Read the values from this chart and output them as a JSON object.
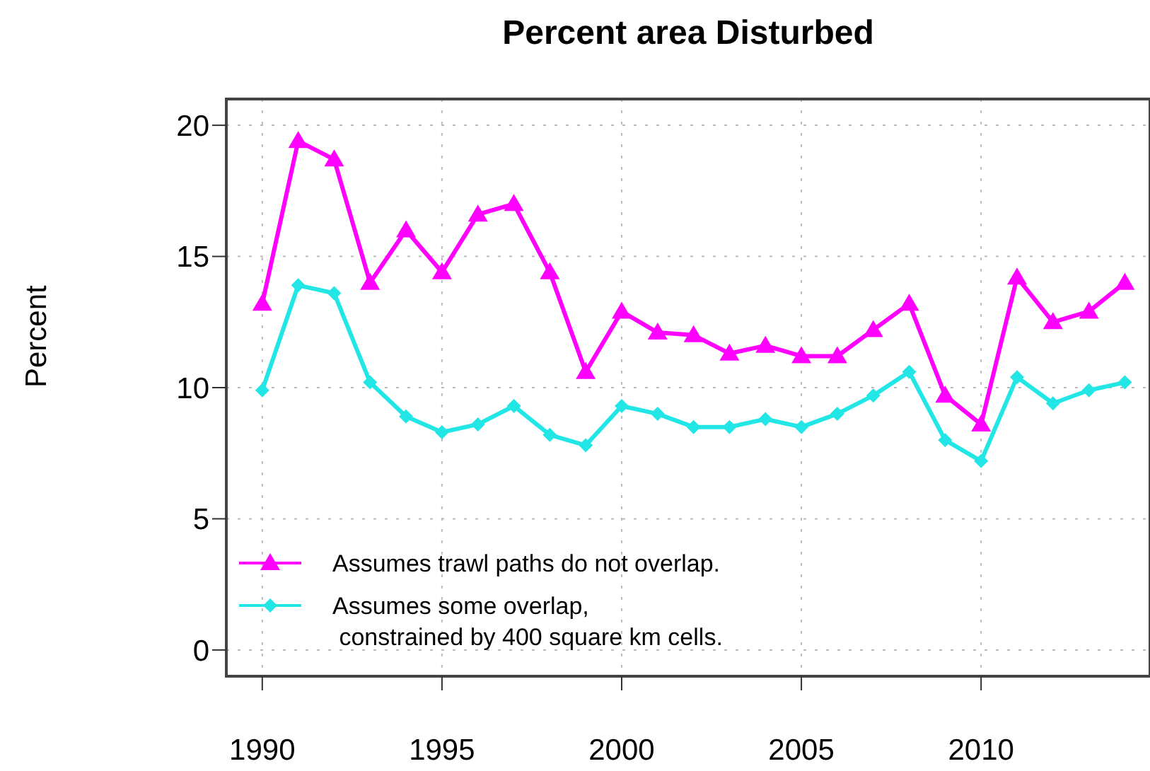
{
  "chart_data": {
    "type": "line",
    "title": "Percent area Disturbed",
    "ylabel": "Percent",
    "x": [
      1990,
      1991,
      1992,
      1993,
      1994,
      1995,
      1996,
      1997,
      1998,
      1999,
      2000,
      2001,
      2002,
      2003,
      2004,
      2005,
      2006,
      2007,
      2008,
      2009,
      2010,
      2011,
      2012,
      2013,
      2014
    ],
    "series": [
      {
        "name": "Assumes trawl paths do not overlap.",
        "color": "#ff00ff",
        "marker": "triangle",
        "values": [
          13.2,
          19.4,
          18.7,
          14.0,
          16.0,
          14.4,
          16.6,
          17.0,
          14.4,
          10.6,
          12.9,
          12.1,
          12.0,
          11.3,
          11.6,
          11.2,
          11.2,
          12.2,
          13.2,
          9.7,
          8.6,
          14.2,
          12.5,
          12.9,
          14.0
        ]
      },
      {
        "name": "Assumes some overlap,\n constrained by 400 square km cells.",
        "color": "#22e6e6",
        "marker": "diamond",
        "values": [
          9.9,
          13.9,
          13.6,
          10.2,
          8.9,
          8.3,
          8.6,
          9.3,
          8.2,
          7.8,
          9.3,
          9.0,
          8.5,
          8.5,
          8.8,
          8.5,
          9.0,
          9.7,
          10.6,
          8.0,
          7.2,
          10.4,
          9.4,
          9.9,
          10.2
        ]
      }
    ],
    "xlim": [
      1989,
      2014.7
    ],
    "xticks": [
      1990,
      1995,
      2000,
      2005,
      2010
    ],
    "ylim": [
      -1,
      21
    ],
    "yticks": [
      0,
      5,
      10,
      15,
      20
    ],
    "grid": true,
    "legend": "bottom left",
    "line_style": "solid"
  }
}
